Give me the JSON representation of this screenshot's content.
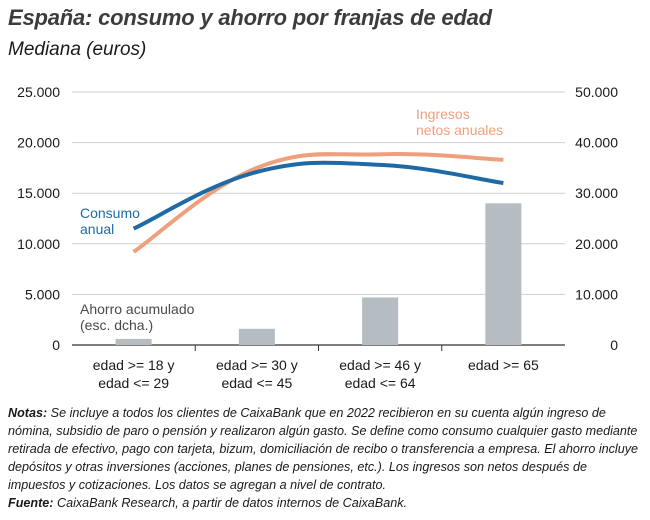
{
  "header": {
    "title": "España: consumo y ahorro por franjas de edad",
    "subtitle": "Mediana (euros)"
  },
  "colors": {
    "consumo": "#1f6aa5",
    "ingresos": "#eea07d",
    "ahorro": "#b5bdc2",
    "grid": "#cfcfcf",
    "axis": "#333333"
  },
  "chart_data": {
    "type": "bar",
    "categories": [
      [
        "edad >= 18 y",
        "edad <= 29"
      ],
      [
        "edad >= 30 y",
        "edad <= 45"
      ],
      [
        "edad >= 46 y",
        "edad <= 64"
      ],
      [
        "edad >= 65"
      ]
    ],
    "left_axis": {
      "ylim": [
        0,
        25000
      ],
      "ticks": [
        "0",
        "5.000",
        "10.000",
        "15.000",
        "20.000",
        "25.000"
      ]
    },
    "right_axis": {
      "ylim": [
        0,
        50000
      ],
      "ticks": [
        "0",
        "10.000",
        "20.000",
        "30.000",
        "40.000",
        "50.000"
      ]
    },
    "grid": true,
    "series": [
      {
        "name": "Ahorro acumulado (esc. dcha.)",
        "label_lines": [
          "Ahorro acumulado",
          "(esc. dcha.)"
        ],
        "type": "bar",
        "axis": "right",
        "values": [
          1200,
          3200,
          9400,
          28000
        ]
      },
      {
        "name": "Consumo anual",
        "label_lines": [
          "Consumo",
          "anual"
        ],
        "type": "line",
        "axis": "left",
        "values": [
          11500,
          17100,
          17800,
          16000
        ]
      },
      {
        "name": "Ingresos netos anuales",
        "label_lines": [
          "Ingresos",
          "netos anuales"
        ],
        "type": "line",
        "axis": "right",
        "values": [
          18400,
          35000,
          37700,
          36600
        ]
      }
    ]
  },
  "footer": {
    "notes_label": "Notas:",
    "notes_text": " Se incluye a todos los clientes de CaixaBank que en 2022 recibieron en su cuenta algún ingreso de nómina, subsidio de paro o pensión y realizaron algún gasto. Se define como consumo cualquier gasto mediante retirada de efectivo, pago con tarjeta, bizum, domiciliación de recibo o transferencia a empresa. El ahorro incluye depósitos y otras inversiones (acciones, planes de pensiones, etc.). Los ingresos son netos después de impuestos y cotizaciones. Los datos se agregan a nivel de contrato.",
    "source_label": "Fuente:",
    "source_text": " CaixaBank Research, a partir de datos internos de CaixaBank."
  }
}
